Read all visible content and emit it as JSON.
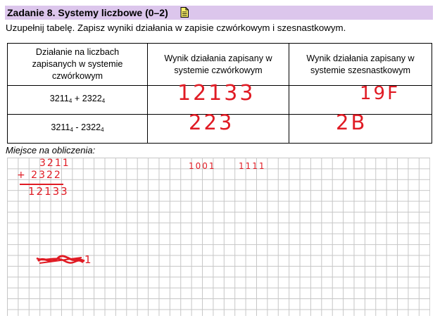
{
  "header": {
    "title": "Zadanie 8. Systemy liczbowe (0–2)",
    "accent_color": "#dcc6ec",
    "icon": "document-pencil-icon"
  },
  "instruction": "Uzupełnij tabelę. Zapisz wyniki działania w zapisie czwórkowym i szesnastkowym.",
  "table": {
    "headers": [
      "Działanie na liczbach zapisanych w systemie czwórkowym",
      "Wynik działania zapisany w systemie czwórkowym",
      "Wynik działania zapisany w systemie szesnastkowym"
    ],
    "rows": [
      {
        "operand1": "3211",
        "base1": "4",
        "operator": " + ",
        "operand2": "2322",
        "base2": "4",
        "answer_base4": "12133",
        "answer_base16": "19F"
      },
      {
        "operand1": "3211",
        "base1": "4",
        "operator": " - ",
        "operand2": "2322",
        "base2": "4",
        "answer_base4": "223",
        "answer_base16": "2B"
      }
    ]
  },
  "calc_label": "Miejsce na obliczenia:",
  "scratch": {
    "line1": "3211",
    "line2": "+ 2322",
    "line3": "12133",
    "binary1": "1001",
    "binary2": "1111",
    "struck_tail": "1",
    "ink_color": "#e01b24"
  }
}
